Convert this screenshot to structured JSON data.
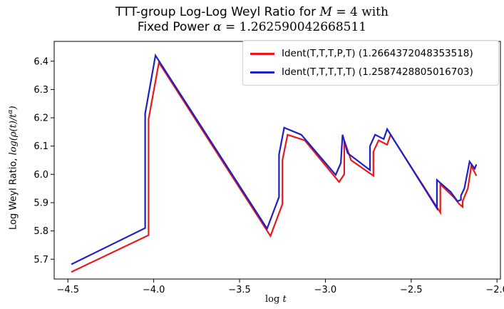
{
  "chart_data": {
    "type": "line",
    "title_prefix": "TTT-group Log-Log Weyl Ratio for ",
    "title_var": "M",
    "title_eq": " = 4 with",
    "title_line2_prefix": "Fixed Power ",
    "title_alpha": "α",
    "title_alpha_value": " = 1.262590042668511",
    "ylabel_prefix": "Log Weyl Ratio, ",
    "ylabel_math": "log(ρ(t)/t",
    "ylabel_sup": "α",
    "ylabel_close": ")",
    "xlabel_log": "log ",
    "xlabel_var": "t",
    "xlim": [
      -4.58,
      -1.98
    ],
    "ylim": [
      5.63,
      6.47
    ],
    "xticks": [
      -4.5,
      -4.0,
      -3.5,
      -3.0,
      -2.5,
      -2.0
    ],
    "xtick_labels": [
      "−4.5",
      "−4.0",
      "−3.5",
      "−3.0",
      "−2.5",
      "−2.0"
    ],
    "yticks": [
      5.7,
      5.8,
      5.9,
      6.0,
      6.1,
      6.2,
      6.3,
      6.4
    ],
    "ytick_labels": [
      "5.7",
      "5.8",
      "5.9",
      "6.0",
      "6.1",
      "6.2",
      "6.3",
      "6.4"
    ],
    "grid": false,
    "legend_position": "top-right",
    "series": [
      {
        "name": "Ident(T,T,T,P,T) (1.2664372048353518)",
        "color": "#e8191c",
        "x": [
          -4.48,
          -4.03,
          -4.03,
          -3.97,
          -3.32,
          -3.25,
          -3.25,
          -3.22,
          -3.12,
          -2.92,
          -2.89,
          -2.89,
          -2.85,
          -2.72,
          -2.72,
          -2.69,
          -2.64,
          -2.62,
          -2.33,
          -2.33,
          -2.25,
          -2.22,
          -2.2,
          -2.2,
          -2.19,
          -2.17,
          -2.15,
          -2.12
        ],
        "y": [
          5.655,
          5.785,
          6.195,
          6.395,
          5.782,
          5.895,
          6.05,
          6.14,
          6.12,
          5.973,
          6.0,
          6.12,
          6.05,
          5.995,
          6.08,
          6.12,
          6.105,
          6.14,
          5.865,
          5.965,
          5.918,
          5.895,
          5.885,
          5.905,
          5.92,
          5.95,
          6.03,
          5.995
        ]
      },
      {
        "name": "Ident(T,T,T,T,T) (1.2587428805016703)",
        "color": "#1f1fc8",
        "x": [
          -4.48,
          -4.05,
          -4.05,
          -3.99,
          -3.34,
          -3.27,
          -3.27,
          -3.24,
          -3.14,
          -2.94,
          -2.91,
          -2.9,
          -2.87,
          -2.74,
          -2.74,
          -2.71,
          -2.66,
          -2.64,
          -2.35,
          -2.35,
          -2.27,
          -2.23,
          -2.21,
          -2.21,
          -2.19,
          -2.16,
          -2.13,
          -2.12
        ],
        "y": [
          5.682,
          5.81,
          6.215,
          6.42,
          5.808,
          5.92,
          6.07,
          6.165,
          6.14,
          5.998,
          6.04,
          6.14,
          6.075,
          6.015,
          6.1,
          6.14,
          6.125,
          6.16,
          5.88,
          5.98,
          5.938,
          5.905,
          5.91,
          5.925,
          5.95,
          6.045,
          6.02,
          6.035
        ]
      }
    ]
  }
}
